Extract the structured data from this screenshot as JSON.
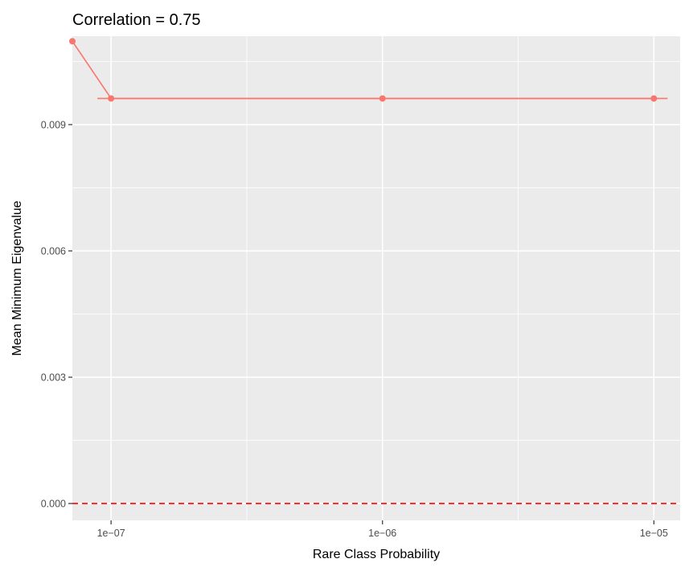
{
  "chart_data": {
    "type": "line",
    "title": "Correlation = 0.75",
    "xlabel": "Rare Class Probability",
    "ylabel": "Mean Minimum Eigenvalue",
    "x_scale": "log10",
    "xlim": [
      7.2e-08,
      1.25e-05
    ],
    "ylim": [
      -0.0004,
      0.0111
    ],
    "x_ticks": [
      1e-07,
      1e-06,
      1e-05
    ],
    "x_tick_labels": [
      "1e−07",
      "1e−06",
      "1e−05"
    ],
    "y_ticks": [
      0.0,
      0.003,
      0.006,
      0.009
    ],
    "y_tick_labels": [
      "0.000",
      "0.003",
      "0.006",
      "0.009"
    ],
    "grid": true,
    "series": [
      {
        "color": "#F8766D",
        "x": [
          7.2e-08,
          1e-07,
          1e-06,
          1e-05
        ],
        "values": [
          0.01098,
          0.00962,
          0.00962,
          0.00962
        ]
      }
    ],
    "reference_line": {
      "y": 0.0,
      "color": "#FF0000",
      "style": "dashed"
    },
    "colors": {
      "panel": "#EBEBEB",
      "grid": "#FFFFFF",
      "text": "#4D4D4D",
      "axis_title": "#000000"
    }
  }
}
